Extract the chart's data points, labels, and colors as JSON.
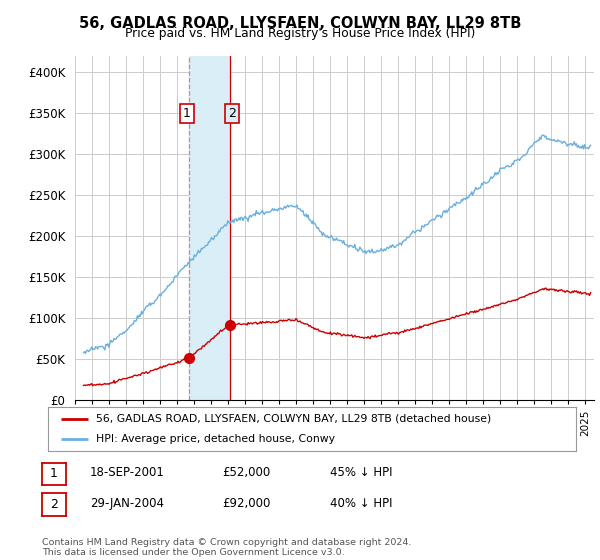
{
  "title": "56, GADLAS ROAD, LLYSFAEN, COLWYN BAY, LL29 8TB",
  "subtitle": "Price paid vs. HM Land Registry's House Price Index (HPI)",
  "hpi_color": "#6ab0de",
  "price_color": "#cc0000",
  "background_color": "#ffffff",
  "grid_color": "#cccccc",
  "highlight_color": "#daeef8",
  "yticks": [
    0,
    50000,
    100000,
    150000,
    200000,
    250000,
    300000,
    350000,
    400000
  ],
  "ytick_labels": [
    "£0",
    "£50K",
    "£100K",
    "£150K",
    "£200K",
    "£250K",
    "£300K",
    "£350K",
    "£400K"
  ],
  "xlim_start": 1995.3,
  "xlim_end": 2025.5,
  "ylim": [
    0,
    420000
  ],
  "transaction1_date": 2001.72,
  "transaction1_price": 52000,
  "transaction1_label": "1",
  "transaction2_date": 2004.08,
  "transaction2_price": 92000,
  "transaction2_label": "2",
  "highlight_x1": 2001.72,
  "highlight_x2": 2004.08,
  "legend_line1": "56, GADLAS ROAD, LLYSFAEN, COLWYN BAY, LL29 8TB (detached house)",
  "legend_line2": "HPI: Average price, detached house, Conwy",
  "table_row1": [
    "1",
    "18-SEP-2001",
    "£52,000",
    "45% ↓ HPI"
  ],
  "table_row2": [
    "2",
    "29-JAN-2004",
    "£92,000",
    "40% ↓ HPI"
  ],
  "footer": "Contains HM Land Registry data © Crown copyright and database right 2024.\nThis data is licensed under the Open Government Licence v3.0."
}
